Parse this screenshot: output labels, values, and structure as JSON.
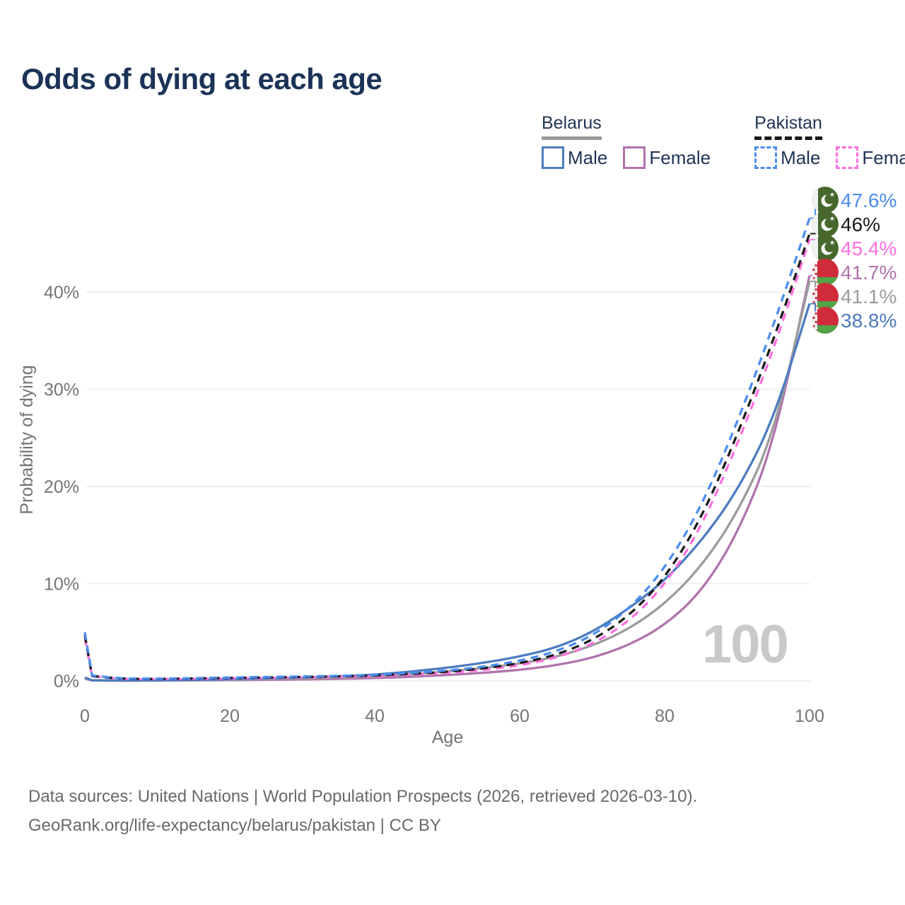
{
  "title": "Odds of dying at each age",
  "watermark": "100",
  "legend": {
    "belarus": {
      "country": "Belarus",
      "male_label": "Male",
      "female_label": "Female"
    },
    "pakistan": {
      "country": "Pakistan",
      "male_label": "Male",
      "female_label": "Female"
    }
  },
  "footer": {
    "line1": "Data sources: United Nations | World Population Prospects (2026, retrieved 2026-03-10).",
    "line2": "GeoRank.org/life-expectancy/belarus/pakistan | CC BY"
  },
  "colors": {
    "belarus_male": "#4d7cbf",
    "belarus_female": "#b173ad",
    "belarus_both": "#9b9b9b",
    "pakistan_male": "#4b8df0",
    "pakistan_female": "#ff70df",
    "pakistan_both": "#1a1a1a",
    "grid": "#ececec",
    "axis_text": "#757575",
    "title_text": "#1b3357",
    "watermark": "#c9c9c9"
  },
  "chart_data": {
    "type": "line",
    "title": "Odds of dying at each age",
    "xlabel": "Age",
    "ylabel": "Probability of dying",
    "xlim": [
      0,
      100
    ],
    "ylim": [
      0,
      50
    ],
    "grid": "horizontal-only",
    "x_ticks": [
      0,
      20,
      40,
      60,
      80,
      100
    ],
    "y_ticks": [
      {
        "value": 0,
        "label": "0%"
      },
      {
        "value": 10,
        "label": "10%"
      },
      {
        "value": 20,
        "label": "20%"
      },
      {
        "value": 30,
        "label": "30%"
      },
      {
        "value": 40,
        "label": "40%"
      }
    ],
    "x": [
      0,
      1,
      5,
      10,
      15,
      20,
      25,
      30,
      35,
      40,
      45,
      50,
      55,
      60,
      65,
      70,
      75,
      80,
      85,
      90,
      95,
      100
    ],
    "series": [
      {
        "name": "Belarus Female",
        "key": "belarus-female",
        "color": "#b173ad",
        "dashed": false,
        "values": [
          0.25,
          0.04,
          0.02,
          0.03,
          0.05,
          0.08,
          0.11,
          0.15,
          0.21,
          0.28,
          0.42,
          0.6,
          0.83,
          1.12,
          1.6,
          2.35,
          3.65,
          5.7,
          9.1,
          15.0,
          24.2,
          41.7
        ]
      },
      {
        "name": "Belarus Both sexes",
        "key": "belarus-both",
        "color": "#9b9b9b",
        "dashed": false,
        "values": [
          0.3,
          0.05,
          0.03,
          0.04,
          0.08,
          0.12,
          0.18,
          0.25,
          0.33,
          0.45,
          0.68,
          0.97,
          1.32,
          1.78,
          2.45,
          3.6,
          5.3,
          7.9,
          11.7,
          17.2,
          25.2,
          41.1
        ]
      },
      {
        "name": "Belarus Male",
        "key": "belarus-male",
        "color": "#4d7cbf",
        "dashed": false,
        "values": [
          0.35,
          0.06,
          0.04,
          0.05,
          0.1,
          0.17,
          0.25,
          0.34,
          0.46,
          0.64,
          0.95,
          1.35,
          1.85,
          2.5,
          3.4,
          5.0,
          7.4,
          10.3,
          14.3,
          19.5,
          26.8,
          38.8
        ]
      },
      {
        "name": "Pakistan Female",
        "key": "pakistan-female",
        "color": "#ff70df",
        "dashed": true,
        "values": [
          4.4,
          0.47,
          0.2,
          0.17,
          0.22,
          0.26,
          0.3,
          0.35,
          0.41,
          0.48,
          0.63,
          0.82,
          1.12,
          1.58,
          2.35,
          3.75,
          6.05,
          9.8,
          15.7,
          24.2,
          34.0,
          45.4
        ]
      },
      {
        "name": "Pakistan Both sexes",
        "key": "pakistan-both",
        "color": "#1a1a1a",
        "dashed": true,
        "values": [
          4.7,
          0.5,
          0.22,
          0.19,
          0.25,
          0.3,
          0.35,
          0.4,
          0.46,
          0.55,
          0.72,
          0.93,
          1.28,
          1.8,
          2.65,
          4.15,
          6.6,
          10.5,
          16.6,
          25.2,
          35.0,
          46.0
        ]
      },
      {
        "name": "Pakistan Male",
        "key": "pakistan-male",
        "color": "#4b8df0",
        "dashed": true,
        "values": [
          5.0,
          0.55,
          0.25,
          0.22,
          0.28,
          0.35,
          0.4,
          0.45,
          0.52,
          0.62,
          0.82,
          1.05,
          1.45,
          2.05,
          3.0,
          4.6,
          7.3,
          11.5,
          17.8,
          26.5,
          36.5,
          47.6
        ]
      }
    ],
    "end_labels": [
      {
        "label": "47.6%",
        "value": 47.6,
        "color": "#4b8df0",
        "flag": "pakistan",
        "series": "Pakistan Male"
      },
      {
        "label": "46%",
        "value": 46.0,
        "color": "#1a1a1a",
        "flag": "pakistan",
        "series": "Pakistan Both sexes"
      },
      {
        "label": "45.4%",
        "value": 45.4,
        "color": "#ff70df",
        "flag": "pakistan",
        "series": "Pakistan Female"
      },
      {
        "label": "41.7%",
        "value": 41.7,
        "color": "#b173ad",
        "flag": "belarus",
        "series": "Belarus Female"
      },
      {
        "label": "41.1%",
        "value": 41.1,
        "color": "#9b9b9b",
        "flag": "belarus",
        "series": "Belarus Both sexes"
      },
      {
        "label": "38.8%",
        "value": 38.8,
        "color": "#4d7cbf",
        "flag": "belarus",
        "series": "Belarus Male"
      }
    ]
  }
}
